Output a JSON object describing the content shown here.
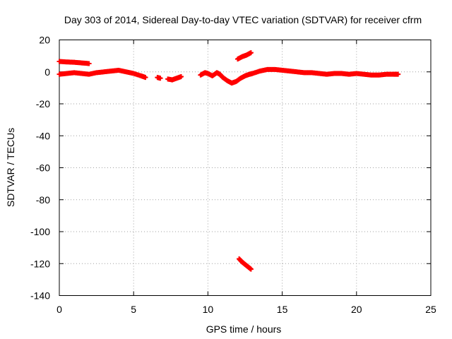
{
  "chart_data": {
    "type": "scatter",
    "title": "Day 303 of 2014, Sidereal Day-to-day VTEC variation (SDTVAR) for receiver cfrm",
    "xlabel": "GPS time / hours",
    "ylabel": "SDTVAR / TECUs",
    "xlim": [
      0,
      25
    ],
    "ylim": [
      -140,
      20
    ],
    "xticks": [
      0,
      5,
      10,
      15,
      20,
      25
    ],
    "yticks": [
      -140,
      -120,
      -100,
      -80,
      -60,
      -40,
      -20,
      0,
      20
    ],
    "grid": true,
    "series_color": "#ff0000",
    "series": [
      {
        "name": "main-trace",
        "x": [
          0.0,
          0.5,
          1.0,
          1.5,
          2.0,
          2.5,
          3.0,
          3.5,
          4.0,
          4.5,
          5.0,
          5.5,
          5.8
        ],
        "y": [
          -1.5,
          -1.0,
          -0.5,
          -1.0,
          -1.5,
          -0.5,
          0.0,
          0.5,
          1.0,
          0.0,
          -1.0,
          -2.5,
          -3.5
        ]
      },
      {
        "name": "upper-segment",
        "x": [
          0.0,
          0.5,
          1.0,
          1.5,
          2.0
        ],
        "y": [
          6.5,
          6.2,
          6.0,
          5.6,
          5.2
        ]
      },
      {
        "name": "gap-segment-1",
        "x": [
          6.6,
          6.8
        ],
        "y": [
          -3.5,
          -4.0
        ]
      },
      {
        "name": "gap-segment-2",
        "x": [
          7.3,
          7.6,
          7.9,
          8.2
        ],
        "y": [
          -4.5,
          -5.0,
          -4.0,
          -3.0
        ]
      },
      {
        "name": "midday-segment",
        "x": [
          9.5,
          9.8,
          10.0,
          10.3,
          10.6,
          10.8,
          11.0,
          11.3,
          11.6,
          11.9,
          12.2,
          12.5,
          12.8,
          13.0,
          13.5,
          14.0,
          14.5,
          15.0,
          15.5,
          16.0,
          16.5,
          17.0,
          17.5,
          18.0,
          18.5,
          19.0,
          19.5,
          20.0,
          20.5,
          21.0,
          21.5,
          22.0,
          22.5,
          22.8
        ],
        "y": [
          -2.0,
          -0.5,
          -1.0,
          -2.5,
          -0.5,
          -1.5,
          -3.5,
          -5.5,
          -7.0,
          -6.0,
          -4.0,
          -2.5,
          -1.5,
          -1.0,
          0.5,
          1.5,
          1.5,
          1.0,
          0.5,
          0.0,
          -0.5,
          -0.5,
          -1.0,
          -1.5,
          -1.0,
          -1.0,
          -1.5,
          -1.0,
          -1.5,
          -2.0,
          -2.0,
          -1.5,
          -1.5,
          -1.5
        ]
      },
      {
        "name": "rising-segment",
        "x": [
          12.0,
          12.3,
          12.6,
          12.9
        ],
        "y": [
          8.0,
          9.5,
          10.5,
          12.0
        ]
      },
      {
        "name": "outlier-segment",
        "x": [
          12.1,
          12.3,
          12.5,
          12.7,
          12.9
        ],
        "y": [
          -117.0,
          -119.0,
          -120.5,
          -122.0,
          -123.5
        ]
      }
    ]
  }
}
